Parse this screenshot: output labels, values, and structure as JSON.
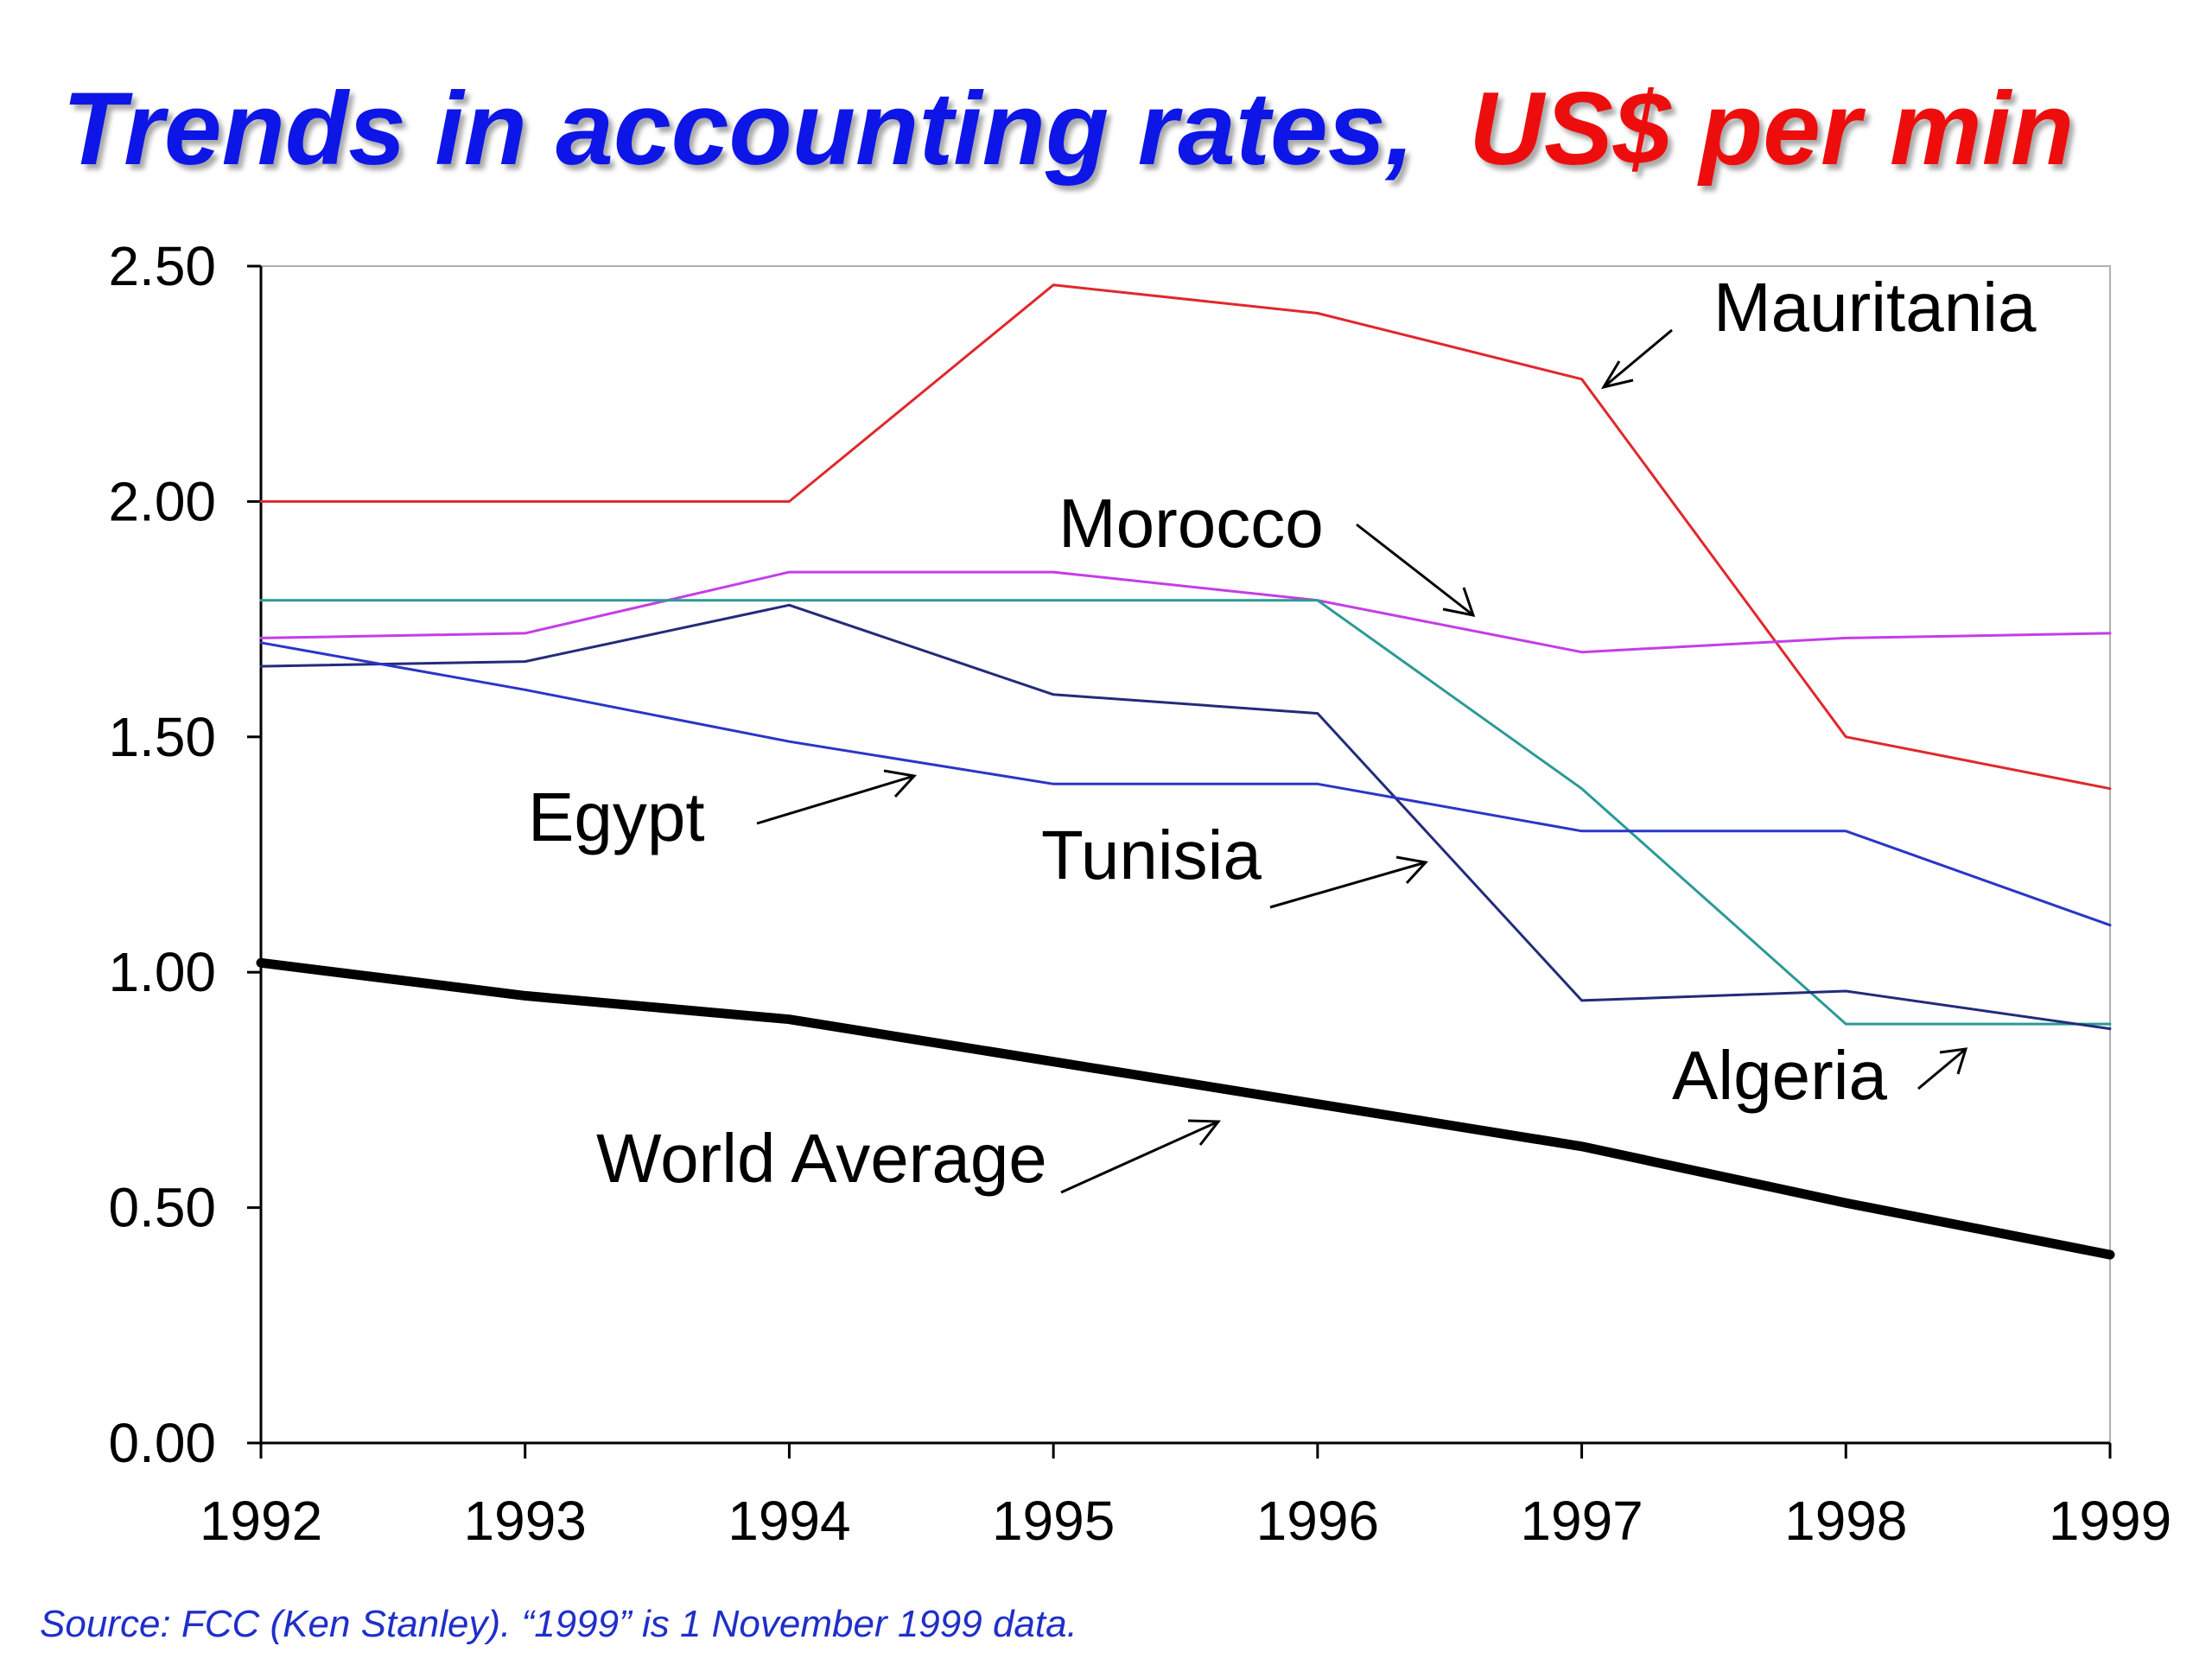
{
  "title": {
    "part1": "Trends in accounting rates,",
    "part2": "US$ per min",
    "color_part1": "#0a14e6",
    "color_part2": "#ee0a0a"
  },
  "source": {
    "text": "Source: FCC (Ken Stanley). “1999” is 1 November 1999 data.",
    "color": "#1f2fc9"
  },
  "chart_data": {
    "type": "line",
    "x": [
      1992,
      1993,
      1994,
      1995,
      1996,
      1997,
      1998,
      1999
    ],
    "x_tick_labels": [
      "1992",
      "1993",
      "1994",
      "1995",
      "1996",
      "1997",
      "1998",
      "1999"
    ],
    "ylim": [
      0,
      2.5
    ],
    "y_ticks": [
      0,
      0.5,
      1.0,
      1.5,
      2.0,
      2.5
    ],
    "y_tick_labels": [
      "0.00",
      "0.50",
      "1.00",
      "1.50",
      "2.00",
      "2.50"
    ],
    "grid": false,
    "legend": "none (series labeled by inline annotations with arrows)",
    "series": [
      {
        "name": "Mauritania",
        "color": "#e0282d",
        "values": [
          2.0,
          2.0,
          2.0,
          2.46,
          2.4,
          2.26,
          1.5,
          1.39
        ]
      },
      {
        "name": "Morocco",
        "color": "#c43ee6",
        "values": [
          1.71,
          1.72,
          1.85,
          1.85,
          1.79,
          1.68,
          1.71,
          1.72
        ]
      },
      {
        "name": "Algeria",
        "color": "#2a9a96",
        "values": [
          1.79,
          1.79,
          1.79,
          1.79,
          1.79,
          1.39,
          0.89,
          0.89
        ]
      },
      {
        "name": "Tunisia",
        "color": "#232b7a",
        "values": [
          1.65,
          1.66,
          1.78,
          1.59,
          1.55,
          0.94,
          0.96,
          0.88
        ]
      },
      {
        "name": "Egypt",
        "color": "#2a36c6",
        "values": [
          1.7,
          1.6,
          1.49,
          1.4,
          1.4,
          1.3,
          1.3,
          1.1
        ]
      },
      {
        "name": "World Average",
        "color": "#000000",
        "bold": true,
        "values": [
          1.02,
          0.95,
          0.9,
          0.81,
          0.72,
          0.63,
          0.51,
          0.4
        ]
      }
    ],
    "annotations": [
      {
        "label": "Mauritania",
        "series": "Mauritania"
      },
      {
        "label": "Morocco",
        "series": "Morocco"
      },
      {
        "label": "Egypt",
        "series": "Egypt"
      },
      {
        "label": "Tunisia",
        "series": "Tunisia"
      },
      {
        "label": "Algeria",
        "series": "Algeria"
      },
      {
        "label": "World Average",
        "series": "World Average"
      }
    ]
  }
}
